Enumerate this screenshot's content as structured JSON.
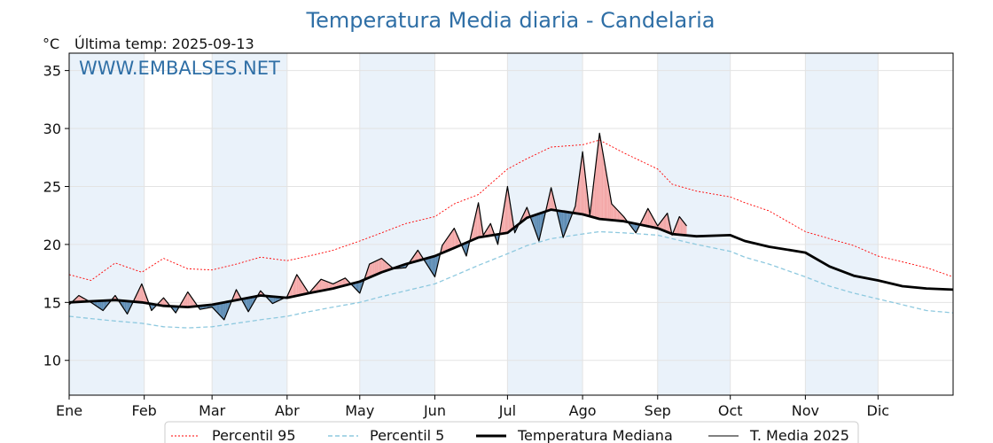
{
  "header": {
    "title": "Temperatura Media diaria - Candelaria",
    "unit": "°C",
    "last_temp": "Última temp: 2025-09-13",
    "watermark": "WWW.EMBALSES.NET"
  },
  "legend": {
    "p95": "Percentil 95",
    "p5": "Percentil 5",
    "median": "Temperatura Mediana",
    "mean2025": "T. Media 2025"
  },
  "colors": {
    "p95": "#ff0000",
    "p5": "#8ec9df",
    "median": "#000000",
    "mean2025": "#000000",
    "above_fill": "#f4a8a8",
    "below_fill": "#5e8db5",
    "band": "#eaf2fa",
    "title": "#2f6fa6"
  },
  "chart_data": {
    "type": "line",
    "title": "Temperatura Media diaria - Candelaria",
    "ylabel": "°C",
    "ylim": [
      7,
      36.5
    ],
    "yticks": [
      10,
      15,
      20,
      25,
      30,
      35
    ],
    "xlim": [
      1,
      366
    ],
    "x_unit": "día del año",
    "months": [
      {
        "label": "Ene",
        "day": 1
      },
      {
        "label": "Feb",
        "day": 32
      },
      {
        "label": "Mar",
        "day": 60
      },
      {
        "label": "Abr",
        "day": 91
      },
      {
        "label": "May",
        "day": 121
      },
      {
        "label": "Jun",
        "day": 152
      },
      {
        "label": "Jul",
        "day": 182
      },
      {
        "label": "Ago",
        "day": 213
      },
      {
        "label": "Sep",
        "day": 244
      },
      {
        "label": "Oct",
        "day": 274
      },
      {
        "label": "Nov",
        "day": 305
      },
      {
        "label": "Dic",
        "day": 335
      }
    ],
    "grid": true,
    "legend_position": "bottom",
    "shaded_months": [
      "Ene",
      "Mar",
      "May",
      "Jul",
      "Sep",
      "Nov"
    ],
    "series": [
      {
        "name": "Percentil 95",
        "style": "dotted",
        "x": [
          1,
          10,
          20,
          31,
          40,
          50,
          60,
          70,
          80,
          91,
          100,
          110,
          121,
          130,
          140,
          152,
          160,
          170,
          182,
          190,
          200,
          213,
          220,
          230,
          244,
          250,
          260,
          274,
          280,
          290,
          305,
          315,
          325,
          335,
          345,
          355,
          366
        ],
        "values": [
          17.4,
          16.9,
          18.4,
          17.6,
          18.8,
          17.9,
          17.8,
          18.3,
          18.9,
          18.6,
          19.0,
          19.5,
          20.3,
          21.0,
          21.8,
          22.4,
          23.5,
          24.3,
          26.5,
          27.4,
          28.4,
          28.6,
          29.0,
          27.9,
          26.5,
          25.2,
          24.6,
          24.1,
          23.6,
          22.9,
          21.1,
          20.5,
          19.9,
          19.0,
          18.5,
          18.0,
          17.2
        ]
      },
      {
        "name": "Percentil 5",
        "style": "dashed",
        "x": [
          1,
          10,
          20,
          31,
          40,
          50,
          60,
          70,
          80,
          91,
          100,
          110,
          121,
          130,
          140,
          152,
          160,
          170,
          182,
          190,
          200,
          213,
          220,
          230,
          244,
          250,
          260,
          274,
          280,
          290,
          305,
          315,
          325,
          335,
          345,
          355,
          366
        ],
        "values": [
          13.8,
          13.6,
          13.4,
          13.2,
          12.9,
          12.8,
          12.9,
          13.2,
          13.5,
          13.8,
          14.2,
          14.6,
          15.0,
          15.5,
          16.0,
          16.6,
          17.3,
          18.2,
          19.2,
          19.9,
          20.5,
          20.9,
          21.1,
          21.0,
          20.8,
          20.5,
          20.0,
          19.4,
          18.9,
          18.3,
          17.2,
          16.4,
          15.8,
          15.3,
          14.8,
          14.3,
          14.1
        ]
      },
      {
        "name": "Temperatura Mediana",
        "style": "solid-thick",
        "x": [
          1,
          10,
          20,
          31,
          40,
          50,
          60,
          70,
          80,
          91,
          100,
          110,
          121,
          130,
          140,
          152,
          160,
          170,
          182,
          190,
          200,
          213,
          220,
          230,
          244,
          250,
          260,
          274,
          280,
          290,
          305,
          315,
          325,
          335,
          345,
          355,
          366
        ],
        "values": [
          15.0,
          15.1,
          15.2,
          15.0,
          14.7,
          14.6,
          14.8,
          15.2,
          15.6,
          15.4,
          15.8,
          16.2,
          16.8,
          17.6,
          18.3,
          19.0,
          19.7,
          20.6,
          21.0,
          22.3,
          23.0,
          22.6,
          22.2,
          22.0,
          21.4,
          20.9,
          20.7,
          20.8,
          20.3,
          19.8,
          19.3,
          18.1,
          17.3,
          16.9,
          16.4,
          16.2,
          16.1
        ]
      },
      {
        "name": "T. Media 2025",
        "style": "solid",
        "x": [
          1,
          5,
          10,
          15,
          20,
          25,
          31,
          35,
          40,
          45,
          50,
          55,
          60,
          65,
          70,
          75,
          80,
          85,
          91,
          95,
          100,
          105,
          110,
          115,
          121,
          125,
          130,
          135,
          140,
          145,
          152,
          155,
          160,
          165,
          170,
          172,
          175,
          178,
          182,
          185,
          190,
          195,
          200,
          205,
          210,
          213,
          216,
          220,
          225,
          230,
          235,
          240,
          244,
          248,
          250,
          253,
          256
        ],
        "values": [
          14.8,
          15.6,
          15.0,
          14.3,
          15.6,
          14.0,
          16.6,
          14.3,
          15.4,
          14.1,
          15.9,
          14.4,
          14.6,
          13.5,
          16.1,
          14.2,
          16.0,
          14.9,
          15.5,
          17.4,
          15.8,
          17.0,
          16.6,
          17.1,
          15.8,
          18.3,
          18.8,
          17.9,
          18.0,
          19.5,
          17.2,
          19.9,
          21.4,
          19.0,
          23.6,
          20.8,
          21.8,
          20.0,
          25.0,
          21.0,
          23.2,
          20.3,
          24.9,
          20.6,
          23.3,
          28.0,
          22.5,
          29.6,
          23.5,
          22.4,
          21.0,
          23.1,
          21.6,
          22.7,
          20.8,
          22.4,
          21.6
        ]
      }
    ]
  }
}
